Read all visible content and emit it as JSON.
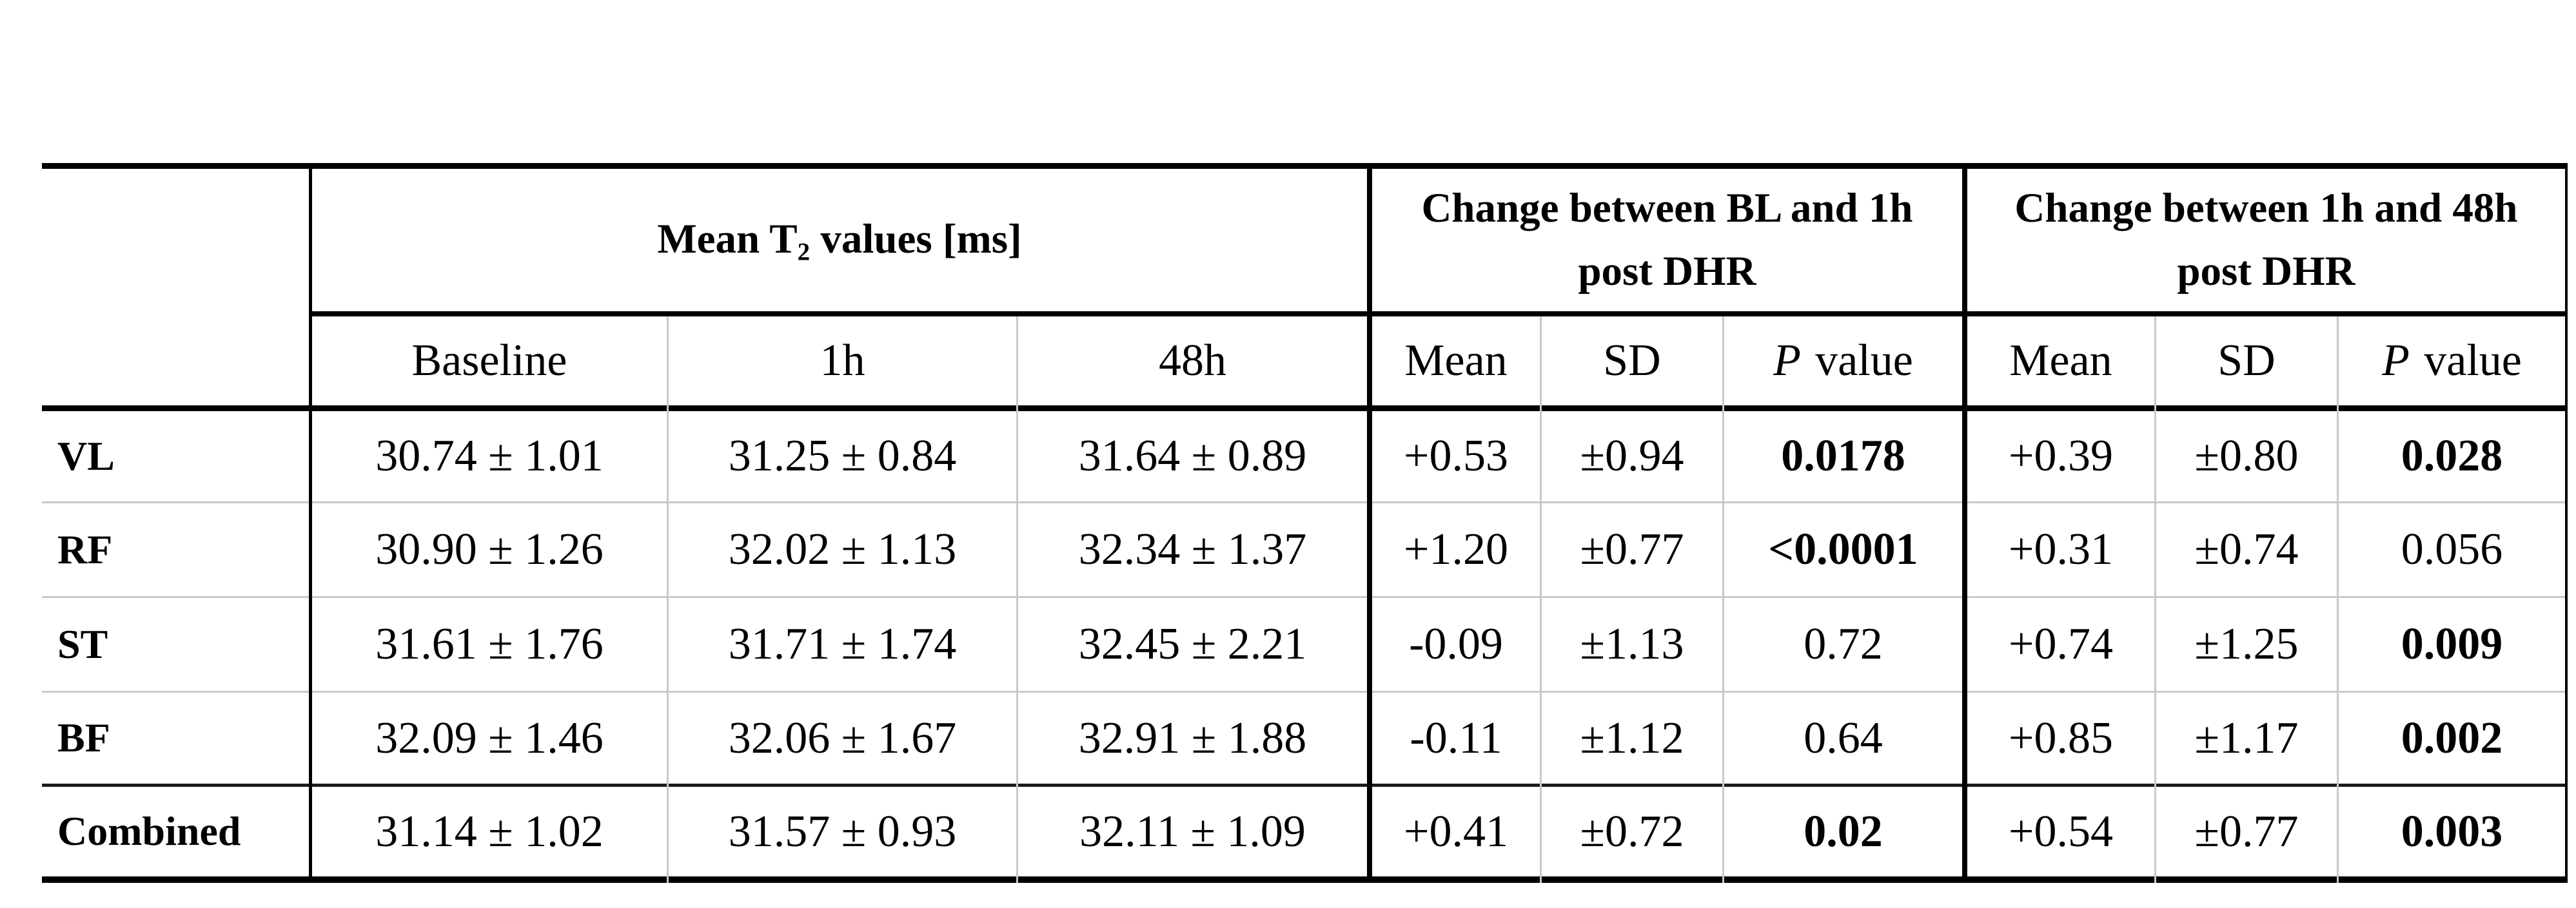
{
  "table": {
    "header": {
      "group1": {
        "prefix": "Mean T",
        "subscript": "2",
        "suffix": " values [ms]"
      },
      "group2_line1": "Change between BL and 1h",
      "group2_line2": "post DHR",
      "group3_line1": "Change between 1h and 48h",
      "group3_line2": "post DHR",
      "col_baseline": "Baseline",
      "col_1h": "1h",
      "col_48h": "48h",
      "col_mean": "Mean",
      "col_sd": "SD",
      "col_p_italic": "P",
      "col_p_rest": "value"
    },
    "rows": [
      {
        "label": "VL",
        "cells": [
          "30.74 ± 1.01",
          "31.25 ± 0.84",
          "31.64 ± 0.89",
          "+0.53",
          "±0.94",
          "0.0178",
          "+0.39",
          "±0.80",
          "0.028"
        ],
        "bold": [
          false,
          false,
          false,
          false,
          false,
          true,
          false,
          false,
          true
        ]
      },
      {
        "label": "RF",
        "cells": [
          "30.90 ± 1.26",
          "32.02 ± 1.13",
          "32.34 ± 1.37",
          "+1.20",
          "±0.77",
          "<0.0001",
          "+0.31",
          "±0.74",
          "0.056"
        ],
        "bold": [
          false,
          false,
          false,
          false,
          false,
          true,
          false,
          false,
          false
        ]
      },
      {
        "label": "ST",
        "cells": [
          "31.61 ± 1.76",
          "31.71 ± 1.74",
          "32.45 ± 2.21",
          "-0.09",
          "±1.13",
          "0.72",
          "+0.74",
          "±1.25",
          "0.009"
        ],
        "bold": [
          false,
          false,
          false,
          false,
          false,
          false,
          false,
          false,
          true
        ]
      },
      {
        "label": "BF",
        "cells": [
          "32.09 ± 1.46",
          "32.06 ± 1.67",
          "32.91 ± 1.88",
          "-0.11",
          "±1.12",
          "0.64",
          "+0.85",
          "±1.17",
          "0.002"
        ],
        "bold": [
          false,
          false,
          false,
          false,
          false,
          false,
          false,
          false,
          true
        ]
      },
      {
        "label": "Combined",
        "cells": [
          "31.14 ± 1.02",
          "31.57 ± 0.93",
          "32.11 ± 1.09",
          "+0.41",
          "±0.72",
          "0.02",
          "+0.54",
          "±0.77",
          "0.003"
        ],
        "bold": [
          false,
          false,
          false,
          false,
          false,
          true,
          false,
          false,
          true
        ]
      }
    ]
  }
}
